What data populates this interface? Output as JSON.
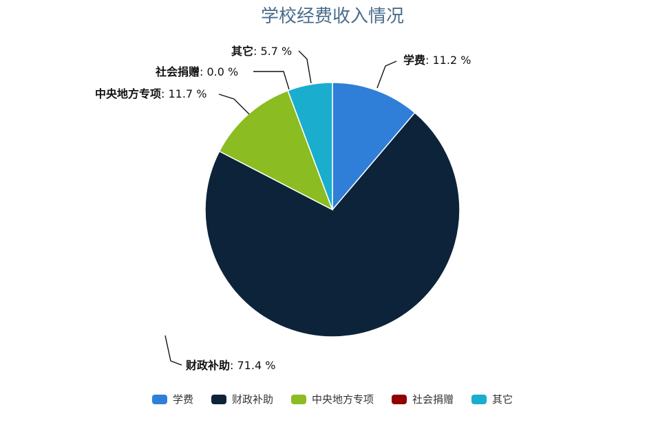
{
  "chart_data": {
    "type": "pie",
    "title": "学校经费收入情况",
    "series": [
      {
        "name": "学费",
        "value": 11.2,
        "label": "学费",
        "value_text": ": 11.2 %",
        "color": "#2f7ed8"
      },
      {
        "name": "财政补助",
        "value": 71.4,
        "label": "财政补助",
        "value_text": ": 71.4 %",
        "color": "#0d233a"
      },
      {
        "name": "中央地方专项",
        "value": 11.7,
        "label": "中央地方专项",
        "value_text": ": 11.7 %",
        "color": "#8bbc21"
      },
      {
        "name": "社会捐赠",
        "value": 0.0,
        "label": "社会捐赠",
        "value_text": ": 0.0 %",
        "color": "#910000"
      },
      {
        "name": "其它",
        "value": 5.7,
        "label": "其它",
        "value_text": ": 5.7 %",
        "color": "#1aadce"
      }
    ],
    "legend": {
      "placement": "bottom",
      "items": [
        "学费",
        "财政补助",
        "中央地方专项",
        "社会捐赠",
        "其它"
      ]
    }
  }
}
